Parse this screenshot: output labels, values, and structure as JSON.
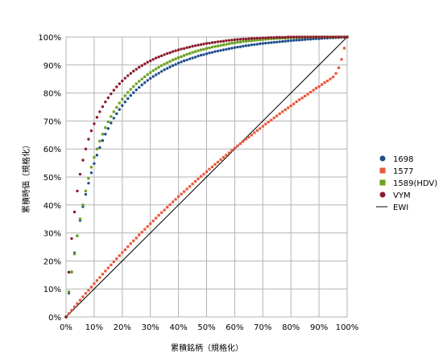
{
  "chart_data": {
    "type": "scatter",
    "title": "",
    "xlabel": "累積銘柄（規格化）",
    "ylabel": "累積時価（規格化）",
    "xlim": [
      0,
      100
    ],
    "ylim": [
      0,
      100
    ],
    "x_ticks": [
      "0%",
      "10%",
      "20%",
      "30%",
      "40%",
      "50%",
      "60%",
      "70%",
      "80%",
      "90%",
      "100%"
    ],
    "y_ticks": [
      "0%",
      "10%",
      "20%",
      "30%",
      "40%",
      "50%",
      "60%",
      "70%",
      "80%",
      "90%",
      "100%"
    ],
    "grid": true,
    "legend_position": "right",
    "series": [
      {
        "name": "1698",
        "color": "#1f4e8c",
        "marker": "circle",
        "x": [
          0,
          1,
          2,
          3,
          4,
          5,
          6,
          7,
          8,
          9,
          10,
          11,
          12,
          13,
          14,
          15,
          16,
          17,
          18,
          19,
          20,
          21,
          22,
          23,
          24,
          25,
          26,
          27,
          28,
          29,
          30,
          31,
          32,
          33,
          34,
          35,
          36,
          37,
          38,
          39,
          40,
          41,
          42,
          43,
          44,
          45,
          46,
          47,
          48,
          49,
          50,
          51,
          52,
          53,
          54,
          55,
          56,
          57,
          58,
          59,
          60,
          61,
          62,
          63,
          64,
          65,
          66,
          67,
          68,
          69,
          70,
          71,
          72,
          73,
          74,
          75,
          76,
          77,
          78,
          79,
          80,
          81,
          82,
          83,
          84,
          85,
          86,
          87,
          88,
          89,
          90,
          91,
          92,
          93,
          94,
          95,
          96,
          97,
          98,
          99,
          100
        ],
        "y": [
          0,
          8.5,
          16.1,
          22.9,
          29.0,
          34.5,
          39.4,
          43.8,
          47.8,
          51.5,
          54.8,
          57.8,
          60.5,
          63.0,
          65.3,
          67.3,
          69.3,
          71.0,
          72.6,
          74.1,
          75.5,
          76.8,
          78.0,
          79.1,
          80.1,
          81.1,
          82.0,
          82.9,
          83.7,
          84.5,
          85.2,
          85.9,
          86.5,
          87.1,
          87.7,
          88.3,
          88.8,
          89.3,
          89.8,
          90.2,
          90.7,
          91.1,
          91.5,
          91.8,
          92.2,
          92.5,
          92.8,
          93.2,
          93.5,
          93.7,
          94.0,
          94.3,
          94.5,
          94.8,
          95.0,
          95.2,
          95.4,
          95.6,
          95.8,
          96.0,
          96.2,
          96.4,
          96.5,
          96.7,
          96.9,
          97.0,
          97.2,
          97.3,
          97.4,
          97.6,
          97.7,
          97.8,
          97.9,
          98.0,
          98.1,
          98.2,
          98.3,
          98.4,
          98.5,
          98.6,
          98.7,
          98.8,
          98.9,
          98.9,
          99.0,
          99.1,
          99.2,
          99.2,
          99.3,
          99.4,
          99.4,
          99.5,
          99.6,
          99.6,
          99.7,
          99.7,
          99.8,
          99.8,
          99.9,
          99.9,
          100
        ]
      },
      {
        "name": "1577",
        "color": "#e8573a",
        "marker": "square",
        "x": [
          0,
          1,
          2,
          3,
          4,
          5,
          6,
          7,
          8,
          9,
          10,
          11,
          12,
          13,
          14,
          15,
          16,
          17,
          18,
          19,
          20,
          21,
          22,
          23,
          24,
          25,
          26,
          27,
          28,
          29,
          30,
          31,
          32,
          33,
          34,
          35,
          36,
          37,
          38,
          39,
          40,
          41,
          42,
          43,
          44,
          45,
          46,
          47,
          48,
          49,
          50,
          51,
          52,
          53,
          54,
          55,
          56,
          57,
          58,
          59,
          60,
          61,
          62,
          63,
          64,
          65,
          66,
          67,
          68,
          69,
          70,
          71,
          72,
          73,
          74,
          75,
          76,
          77,
          78,
          79,
          80,
          81,
          82,
          83,
          84,
          85,
          86,
          87,
          88,
          89,
          90,
          91,
          92,
          93,
          94,
          95,
          96,
          97,
          98,
          99,
          100
        ],
        "y": [
          0,
          1.2,
          2.4,
          3.6,
          4.8,
          6.0,
          7.2,
          8.4,
          9.5,
          10.7,
          11.9,
          13.0,
          14.1,
          15.3,
          16.4,
          17.5,
          18.6,
          19.7,
          20.8,
          21.9,
          23.0,
          24.0,
          25.1,
          26.2,
          27.2,
          28.2,
          29.3,
          30.3,
          31.3,
          32.3,
          33.3,
          34.3,
          35.3,
          36.3,
          37.3,
          38.2,
          39.2,
          40.1,
          41.1,
          42.0,
          43.0,
          43.9,
          44.8,
          45.7,
          46.6,
          47.5,
          48.4,
          49.3,
          50.2,
          51.0,
          51.9,
          52.8,
          53.6,
          54.5,
          55.3,
          56.2,
          57.0,
          57.8,
          58.6,
          59.5,
          60.3,
          61.1,
          61.9,
          62.7,
          63.5,
          64.2,
          65.0,
          65.8,
          66.6,
          67.3,
          68.1,
          68.9,
          69.6,
          70.3,
          71.1,
          71.8,
          72.6,
          73.3,
          74.0,
          74.7,
          75.4,
          76.1,
          76.9,
          77.6,
          78.2,
          78.9,
          79.6,
          80.3,
          81.0,
          81.7,
          82.3,
          83.0,
          83.7,
          84.3,
          85.0,
          85.7,
          87.0,
          89.0,
          92.0,
          96.0,
          100
        ]
      },
      {
        "name": "1589(HDV)",
        "color": "#6aa121",
        "marker": "square",
        "x": [
          0,
          1,
          2,
          3,
          4,
          5,
          6,
          7,
          8,
          9,
          10,
          11,
          12,
          13,
          14,
          15,
          16,
          17,
          18,
          19,
          20,
          21,
          22,
          23,
          24,
          25,
          26,
          27,
          28,
          29,
          30,
          31,
          32,
          33,
          34,
          35,
          36,
          37,
          38,
          39,
          40,
          41,
          42,
          43,
          44,
          45,
          46,
          47,
          48,
          49,
          50,
          51,
          52,
          53,
          54,
          55,
          56,
          57,
          58,
          59,
          60,
          61,
          62,
          63,
          64,
          65,
          66,
          67,
          68,
          69,
          70,
          71,
          72,
          73,
          74,
          75,
          76,
          77,
          78,
          79,
          80,
          81,
          82,
          83,
          84,
          85,
          86,
          87,
          88,
          89,
          90,
          91,
          92,
          93,
          94,
          95,
          96,
          97,
          98,
          99,
          100
        ],
        "y": [
          0,
          9,
          16,
          22.5,
          29,
          35,
          40,
          45,
          49.5,
          53.5,
          57,
          60,
          62.8,
          65.3,
          67.6,
          69.7,
          71.6,
          73.3,
          74.9,
          76.4,
          77.8,
          79.0,
          80.2,
          81.3,
          82.3,
          83.3,
          84.2,
          85.0,
          85.8,
          86.6,
          87.3,
          88.0,
          88.6,
          89.2,
          89.8,
          90.3,
          90.8,
          91.3,
          91.8,
          92.2,
          92.6,
          93.0,
          93.4,
          93.8,
          94.1,
          94.5,
          94.8,
          95.1,
          95.4,
          95.6,
          95.9,
          96.1,
          96.4,
          96.6,
          96.8,
          97.0,
          97.2,
          97.4,
          97.6,
          97.8,
          97.9,
          98.1,
          98.2,
          98.4,
          98.5,
          98.6,
          98.7,
          98.8,
          98.9,
          99.0,
          99.1,
          99.2,
          99.3,
          99.4,
          99.4,
          99.5,
          99.5,
          99.6,
          99.6,
          99.7,
          99.7,
          99.8,
          99.8,
          99.8,
          99.9,
          99.9,
          99.9,
          99.9,
          100,
          100,
          100,
          100,
          100,
          100,
          100,
          100,
          100,
          100,
          100,
          100,
          100
        ]
      },
      {
        "name": "VYM",
        "color": "#8b1a2b",
        "marker": "circle",
        "x": [
          0,
          1,
          2,
          3,
          4,
          5,
          6,
          7,
          8,
          9,
          10,
          11,
          12,
          13,
          14,
          15,
          16,
          17,
          18,
          19,
          20,
          21,
          22,
          23,
          24,
          25,
          26,
          27,
          28,
          29,
          30,
          31,
          32,
          33,
          34,
          35,
          36,
          37,
          38,
          39,
          40,
          41,
          42,
          43,
          44,
          45,
          46,
          47,
          48,
          49,
          50,
          51,
          52,
          53,
          54,
          55,
          56,
          57,
          58,
          59,
          60,
          61,
          62,
          63,
          64,
          65,
          66,
          67,
          68,
          69,
          70,
          71,
          72,
          73,
          74,
          75,
          76,
          77,
          78,
          79,
          80,
          81,
          82,
          83,
          84,
          85,
          86,
          87,
          88,
          89,
          90,
          91,
          92,
          93,
          94,
          95,
          96,
          97,
          98,
          99,
          100
        ],
        "y": [
          0,
          16,
          28,
          37.5,
          45,
          51,
          56,
          60,
          63.5,
          66.5,
          69,
          71.3,
          73.3,
          75.1,
          76.8,
          78.3,
          79.7,
          81.0,
          82.2,
          83.3,
          84.3,
          85.3,
          86.2,
          87.0,
          87.8,
          88.5,
          89.2,
          89.8,
          90.4,
          91.0,
          91.5,
          92.0,
          92.5,
          92.9,
          93.3,
          93.7,
          94.1,
          94.4,
          94.8,
          95.1,
          95.4,
          95.7,
          95.9,
          96.2,
          96.4,
          96.7,
          96.9,
          97.1,
          97.3,
          97.5,
          97.7,
          97.8,
          98.0,
          98.1,
          98.3,
          98.4,
          98.5,
          98.7,
          98.8,
          98.9,
          99.0,
          99.1,
          99.2,
          99.3,
          99.3,
          99.4,
          99.5,
          99.5,
          99.6,
          99.6,
          99.7,
          99.7,
          99.8,
          99.8,
          99.8,
          99.9,
          99.9,
          99.9,
          99.9,
          100,
          100,
          100,
          100,
          100,
          100,
          100,
          100,
          100,
          100,
          100,
          100,
          100,
          100,
          100,
          100,
          100,
          100,
          100,
          100,
          100,
          100
        ]
      },
      {
        "name": "EWI",
        "color": "#000000",
        "marker": "line",
        "x": [
          0,
          100
        ],
        "y": [
          0,
          100
        ]
      }
    ]
  }
}
